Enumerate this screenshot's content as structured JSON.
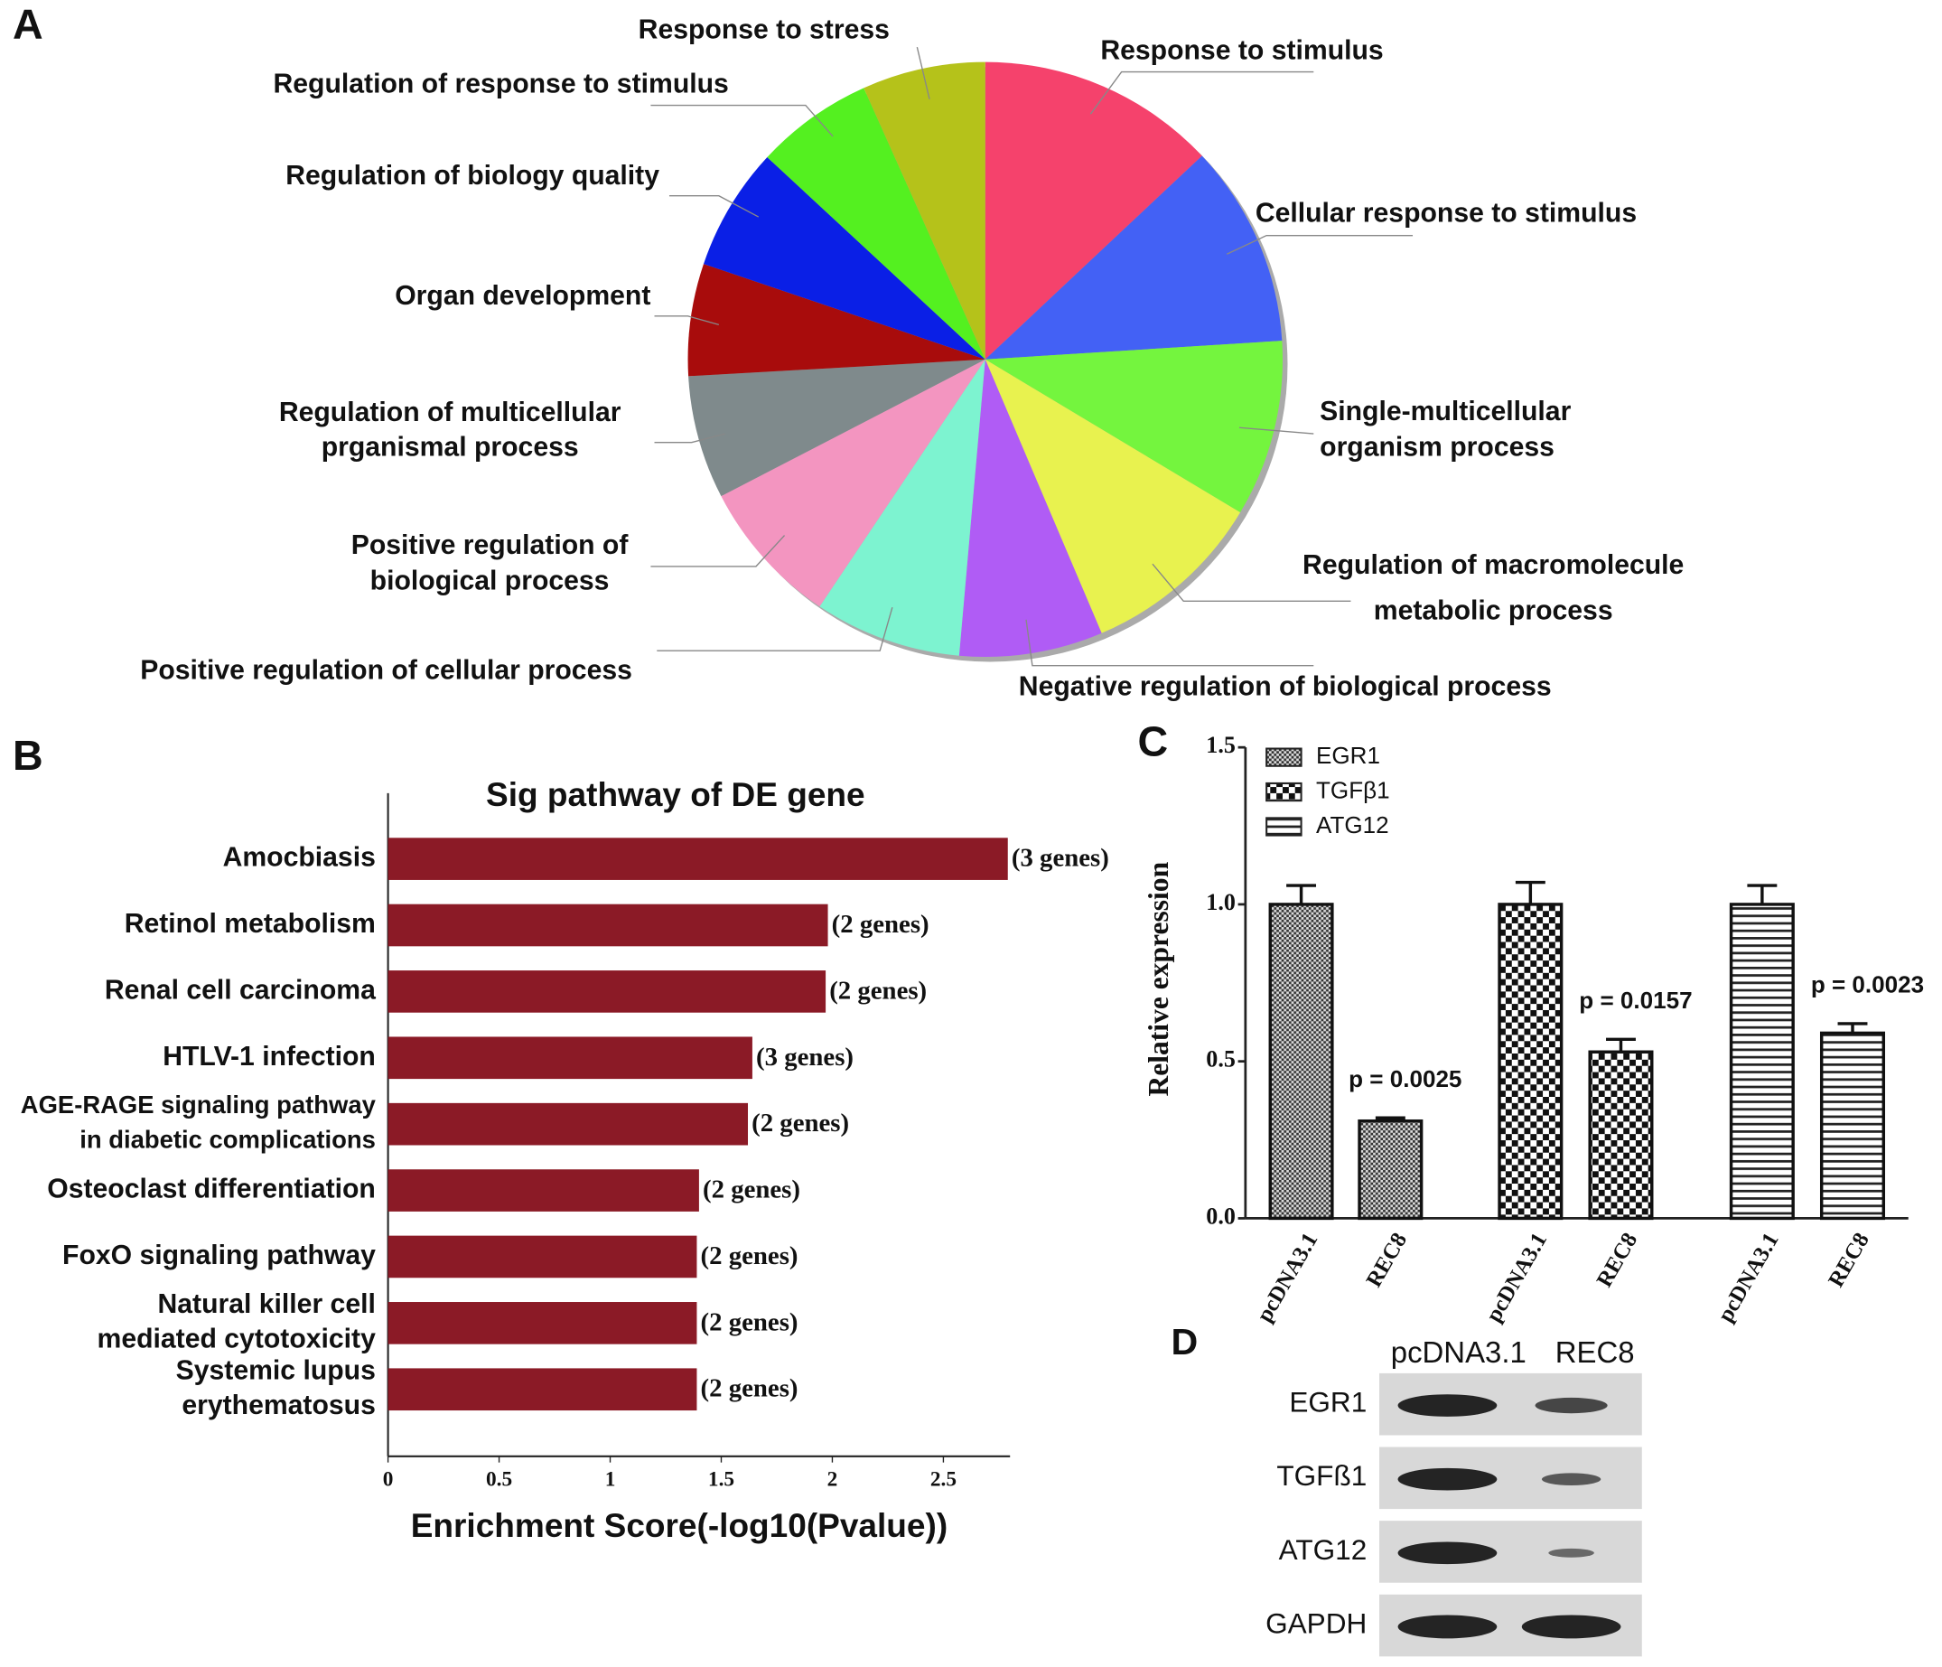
{
  "chart_data": [
    {
      "type": "pie",
      "panel": "A",
      "categories": [
        [
          "Response to stimulus"
        ],
        [
          "Cellular response to stimulus"
        ],
        [
          "Single-multicellular",
          "organism process"
        ],
        [
          "Regulation of macromolecule",
          "metabolic process"
        ],
        [
          "Negative regulation of biological process"
        ],
        [
          "Positive regulation of cellular process"
        ],
        [
          "Positive regulation of",
          "biological process"
        ],
        [
          "Regulation of multicellular",
          "prganismal process"
        ],
        [
          "Organ development"
        ],
        [
          "Regulation of biology quality"
        ],
        [
          "Regulation of response to stimulus"
        ],
        [
          "Response to stress"
        ]
      ],
      "values": [
        13,
        11,
        9.6,
        10,
        7.8,
        8,
        8,
        6.7,
        6.1,
        6.7,
        6.4,
        6.7
      ],
      "colors": [
        "#f5426c",
        "#4361f5",
        "#74f53e",
        "#e8f24f",
        "#b05cf5",
        "#7df3d0",
        "#f395c0",
        "#7f8a8c",
        "#a80c0c",
        "#0a1fe6",
        "#54f020",
        "#b5c21a"
      ]
    },
    {
      "type": "hbar",
      "panel": "B",
      "title": "Sig pathway of DE gene",
      "xlabel": "Enrichment Score(-log10(Pvalue))",
      "categories": [
        [
          "Amocbiasis"
        ],
        [
          "Retinol metabolism"
        ],
        [
          "Renal cell carcinoma"
        ],
        [
          "HTLV-1 infection"
        ],
        [
          "AGE-RAGE signaling pathway",
          "in diabetic complications"
        ],
        [
          "Osteoclast differentiation"
        ],
        [
          "FoxO signaling pathway"
        ],
        [
          "Natural killer cell",
          "mediated cytotoxicity"
        ],
        [
          "Systemic lupus",
          "erythematosus"
        ]
      ],
      "values": [
        2.79,
        1.98,
        1.97,
        1.64,
        1.62,
        1.4,
        1.39,
        1.39,
        1.39
      ],
      "bar_labels": [
        "(3 genes)",
        "(2 genes)",
        "(2 genes)",
        "(3 genes)",
        "(2 genes)",
        "(2 genes)",
        "(2 genes)",
        "(2 genes)",
        "(2 genes)"
      ],
      "color": "#8b1a26",
      "xlim": [
        0,
        2.8
      ],
      "xticks": [
        0,
        0.5,
        1,
        1.5,
        2,
        2.5
      ]
    },
    {
      "type": "grouped_bar",
      "panel": "C",
      "ylabel": "Relative expression",
      "categories": [
        "pcDNA3.1",
        "REC8"
      ],
      "series": [
        {
          "name": "EGR1",
          "pattern": "dots",
          "values": [
            1.0,
            0.31
          ],
          "errors": [
            0.06,
            0.01
          ],
          "annotation": "p = 0.0025"
        },
        {
          "name": "TGFβ1",
          "pattern": "checker",
          "values": [
            1.0,
            0.53
          ],
          "errors": [
            0.07,
            0.04
          ],
          "annotation": "p = 0.0157"
        },
        {
          "name": "ATG12",
          "pattern": "hstripes",
          "values": [
            1.0,
            0.59
          ],
          "errors": [
            0.06,
            0.03
          ],
          "annotation": "p = 0.0023"
        }
      ],
      "ylim": [
        0,
        1.5
      ],
      "yticks": [
        {
          "value": 0,
          "label": "0.0"
        },
        {
          "value": 0.5,
          "label": "0.5"
        },
        {
          "value": 1,
          "label": "1.0"
        },
        {
          "value": 1.5,
          "label": "1.5"
        }
      ],
      "legend": "top-left"
    }
  ],
  "blot": {
    "panel": "D",
    "columns": [
      "pcDNA3.1",
      "REC8"
    ],
    "rows": [
      "EGR1",
      "TGFß1",
      "ATG12",
      "GAPDH"
    ]
  }
}
